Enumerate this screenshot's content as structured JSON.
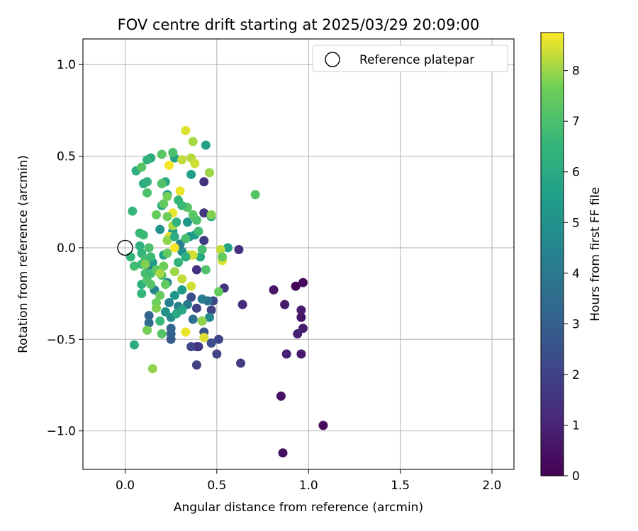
{
  "chart_data": {
    "type": "scatter",
    "title": "FOV centre drift starting at 2025/03/29 20:09:00",
    "xlabel": "Angular distance from reference (arcmin)",
    "ylabel": "Rotation from reference (arcmin)",
    "xlim": [
      -0.23,
      2.12
    ],
    "ylim": [
      -1.21,
      1.14
    ],
    "xticks": [
      0.0,
      0.5,
      1.0,
      1.5,
      2.0
    ],
    "xtick_labels": [
      "0.0",
      "0.5",
      "1.0",
      "1.5",
      "2.0"
    ],
    "yticks": [
      -1.0,
      -0.5,
      0.0,
      0.5,
      1.0
    ],
    "ytick_labels": [
      "−1.0",
      "−0.5",
      "0.0",
      "0.5",
      "1.0"
    ],
    "grid": true,
    "legend": {
      "placement": "top-right",
      "entries": [
        "Reference platepar"
      ]
    },
    "reference_point": {
      "label": "Reference platepar",
      "x": 0.0,
      "y": 0.0
    },
    "colorbar": {
      "label": "Hours from first FF file",
      "min": 0,
      "max": 8.75,
      "ticks": [
        0,
        1,
        2,
        3,
        4,
        5,
        6,
        7,
        8
      ],
      "tick_labels": [
        "0",
        "1",
        "2",
        "3",
        "4",
        "5",
        "6",
        "7",
        "8"
      ],
      "colormap": "viridis"
    },
    "points": [
      {
        "x": 1.08,
        "y": -0.97,
        "t": 0.3
      },
      {
        "x": 0.86,
        "y": -1.12,
        "t": 0.4
      },
      {
        "x": 0.85,
        "y": -0.81,
        "t": 0.5
      },
      {
        "x": 0.93,
        "y": -0.21,
        "t": 0.1
      },
      {
        "x": 0.97,
        "y": -0.19,
        "t": 0.2
      },
      {
        "x": 0.81,
        "y": -0.23,
        "t": 0.6
      },
      {
        "x": 0.87,
        "y": -0.31,
        "t": 0.7
      },
      {
        "x": 0.96,
        "y": -0.34,
        "t": 0.8
      },
      {
        "x": 0.96,
        "y": -0.38,
        "t": 0.6
      },
      {
        "x": 0.97,
        "y": -0.44,
        "t": 0.8
      },
      {
        "x": 0.94,
        "y": -0.47,
        "t": 0.9
      },
      {
        "x": 0.88,
        "y": -0.58,
        "t": 0.9
      },
      {
        "x": 0.96,
        "y": -0.58,
        "t": 0.7
      },
      {
        "x": 0.64,
        "y": -0.31,
        "t": 1.2
      },
      {
        "x": 0.62,
        "y": -0.01,
        "t": 1.4
      },
      {
        "x": 0.63,
        "y": -0.63,
        "t": 1.8
      },
      {
        "x": 0.54,
        "y": -0.22,
        "t": 1.5
      },
      {
        "x": 0.51,
        "y": -0.5,
        "t": 2.1
      },
      {
        "x": 0.5,
        "y": -0.58,
        "t": 2.0
      },
      {
        "x": 0.47,
        "y": -0.52,
        "t": 2.3
      },
      {
        "x": 0.48,
        "y": -0.29,
        "t": 2.2
      },
      {
        "x": 0.47,
        "y": -0.34,
        "t": 2.0
      },
      {
        "x": 0.39,
        "y": -0.64,
        "t": 1.9
      },
      {
        "x": 0.39,
        "y": -0.54,
        "t": 1.8
      },
      {
        "x": 0.36,
        "y": -0.54,
        "t": 2.2
      },
      {
        "x": 0.4,
        "y": -0.54,
        "t": 1.6
      },
      {
        "x": 0.43,
        "y": 0.36,
        "t": 1.5
      },
      {
        "x": 0.43,
        "y": 0.04,
        "t": 1.7
      },
      {
        "x": 0.43,
        "y": 0.19,
        "t": 1.6
      },
      {
        "x": 0.39,
        "y": -0.12,
        "t": 1.4
      },
      {
        "x": 0.39,
        "y": -0.33,
        "t": 1.9
      },
      {
        "x": 0.43,
        "y": -0.46,
        "t": 2.6
      },
      {
        "x": 0.42,
        "y": -0.4,
        "t": 2.5
      },
      {
        "x": 0.36,
        "y": -0.27,
        "t": 2.4
      },
      {
        "x": 0.25,
        "y": -0.5,
        "t": 2.8
      },
      {
        "x": 0.25,
        "y": -0.47,
        "t": 3.0
      },
      {
        "x": 0.25,
        "y": -0.44,
        "t": 3.2
      },
      {
        "x": 0.13,
        "y": -0.37,
        "t": 3.1
      },
      {
        "x": 0.13,
        "y": -0.41,
        "t": 3.4
      },
      {
        "x": 0.37,
        "y": -0.39,
        "t": 3.6
      },
      {
        "x": 0.46,
        "y": -0.38,
        "t": 4.6
      },
      {
        "x": 0.45,
        "y": -0.29,
        "t": 3.8
      },
      {
        "x": 0.42,
        "y": -0.28,
        "t": 4.2
      },
      {
        "x": 0.29,
        "y": -0.32,
        "t": 4.4
      },
      {
        "x": 0.34,
        "y": -0.31,
        "t": 4.0
      },
      {
        "x": 0.25,
        "y": -0.38,
        "t": 4.8
      },
      {
        "x": 0.22,
        "y": -0.35,
        "t": 5.0
      },
      {
        "x": 0.24,
        "y": -0.3,
        "t": 4.3
      },
      {
        "x": 0.27,
        "y": -0.26,
        "t": 5.2
      },
      {
        "x": 0.31,
        "y": -0.23,
        "t": 5.4
      },
      {
        "x": 0.16,
        "y": -0.23,
        "t": 4.5
      },
      {
        "x": 0.13,
        "y": -0.12,
        "t": 4.1
      },
      {
        "x": 0.16,
        "y": -0.12,
        "t": 3.9
      },
      {
        "x": 0.23,
        "y": -0.19,
        "t": 4.7
      },
      {
        "x": 0.15,
        "y": -0.08,
        "t": 5.3
      },
      {
        "x": 0.21,
        "y": -0.04,
        "t": 5.6
      },
      {
        "x": 0.31,
        "y": -0.02,
        "t": 4.9
      },
      {
        "x": 0.35,
        "y": 0.06,
        "t": 5.1
      },
      {
        "x": 0.3,
        "y": 0.02,
        "t": 4.2
      },
      {
        "x": 0.19,
        "y": 0.1,
        "t": 5.0
      },
      {
        "x": 0.34,
        "y": 0.14,
        "t": 5.2
      },
      {
        "x": 0.38,
        "y": 0.07,
        "t": 5.4
      },
      {
        "x": 0.36,
        "y": 0.4,
        "t": 5.5
      },
      {
        "x": 0.44,
        "y": 0.56,
        "t": 5.6
      },
      {
        "x": 0.47,
        "y": 0.17,
        "t": 5.8
      },
      {
        "x": 0.56,
        "y": 0.0,
        "t": 5.7
      },
      {
        "x": 0.41,
        "y": -0.05,
        "t": 5.9
      },
      {
        "x": 0.26,
        "y": 0.09,
        "t": 5.3
      },
      {
        "x": 0.27,
        "y": 0.49,
        "t": 5.7
      },
      {
        "x": 0.22,
        "y": 0.36,
        "t": 5.9
      },
      {
        "x": 0.23,
        "y": 0.29,
        "t": 5.5
      },
      {
        "x": 0.2,
        "y": 0.23,
        "t": 6.0
      },
      {
        "x": 0.1,
        "y": 0.35,
        "t": 6.1
      },
      {
        "x": 0.12,
        "y": 0.36,
        "t": 6.3
      },
      {
        "x": 0.14,
        "y": 0.49,
        "t": 6.0
      },
      {
        "x": 0.12,
        "y": 0.48,
        "t": 6.4
      },
      {
        "x": 0.06,
        "y": 0.42,
        "t": 6.2
      },
      {
        "x": 0.04,
        "y": 0.2,
        "t": 6.5
      },
      {
        "x": 0.08,
        "y": 0.08,
        "t": 6.6
      },
      {
        "x": 0.1,
        "y": 0.07,
        "t": 6.7
      },
      {
        "x": 0.08,
        "y": 0.01,
        "t": 6.3
      },
      {
        "x": 0.03,
        "y": -0.05,
        "t": 6.5
      },
      {
        "x": 0.05,
        "y": -0.1,
        "t": 6.8
      },
      {
        "x": 0.09,
        "y": -0.03,
        "t": 6.4
      },
      {
        "x": 0.09,
        "y": -0.09,
        "t": 6.6
      },
      {
        "x": 0.11,
        "y": -0.06,
        "t": 6.9
      },
      {
        "x": 0.14,
        "y": -0.05,
        "t": 6.7
      },
      {
        "x": 0.13,
        "y": 0.0,
        "t": 7.0
      },
      {
        "x": 0.09,
        "y": -0.2,
        "t": 6.2
      },
      {
        "x": 0.11,
        "y": -0.14,
        "t": 6.9
      },
      {
        "x": 0.09,
        "y": -0.25,
        "t": 6.5
      },
      {
        "x": 0.12,
        "y": -0.18,
        "t": 7.1
      },
      {
        "x": 0.14,
        "y": -0.2,
        "t": 7.2
      },
      {
        "x": 0.14,
        "y": -0.14,
        "t": 6.8
      },
      {
        "x": 0.17,
        "y": -0.12,
        "t": 7.3
      },
      {
        "x": 0.2,
        "y": -0.15,
        "t": 7.0
      },
      {
        "x": 0.22,
        "y": -0.2,
        "t": 7.4
      },
      {
        "x": 0.19,
        "y": -0.26,
        "t": 7.5
      },
      {
        "x": 0.17,
        "y": -0.3,
        "t": 7.6
      },
      {
        "x": 0.17,
        "y": -0.33,
        "t": 7.8
      },
      {
        "x": 0.12,
        "y": -0.45,
        "t": 7.7
      },
      {
        "x": 0.2,
        "y": -0.47,
        "t": 7.2
      },
      {
        "x": 0.15,
        "y": -0.66,
        "t": 7.9
      },
      {
        "x": 0.05,
        "y": -0.53,
        "t": 6.1
      },
      {
        "x": 0.19,
        "y": -0.4,
        "t": 6.6
      },
      {
        "x": 0.28,
        "y": -0.36,
        "t": 6.0
      },
      {
        "x": 0.31,
        "y": -0.34,
        "t": 5.8
      },
      {
        "x": 0.33,
        "y": -0.46,
        "t": 8.6
      },
      {
        "x": 0.43,
        "y": -0.49,
        "t": 8.5
      },
      {
        "x": 0.42,
        "y": -0.4,
        "t": 7.9
      },
      {
        "x": 0.36,
        "y": -0.21,
        "t": 8.4
      },
      {
        "x": 0.31,
        "y": -0.17,
        "t": 8.3
      },
      {
        "x": 0.23,
        "y": -0.03,
        "t": 7.4
      },
      {
        "x": 0.27,
        "y": 0.0,
        "t": 8.7
      },
      {
        "x": 0.24,
        "y": 0.06,
        "t": 8.5
      },
      {
        "x": 0.26,
        "y": 0.12,
        "t": 8.1
      },
      {
        "x": 0.26,
        "y": 0.19,
        "t": 8.6
      },
      {
        "x": 0.35,
        "y": -0.04,
        "t": 8.2
      },
      {
        "x": 0.37,
        "y": -0.04,
        "t": 8.4
      },
      {
        "x": 0.27,
        "y": -0.13,
        "t": 8.0
      },
      {
        "x": 0.24,
        "y": 0.45,
        "t": 8.7
      },
      {
        "x": 0.3,
        "y": 0.31,
        "t": 8.6
      },
      {
        "x": 0.31,
        "y": 0.48,
        "t": 8.3
      },
      {
        "x": 0.33,
        "y": 0.64,
        "t": 8.5
      },
      {
        "x": 0.37,
        "y": 0.58,
        "t": 8.1
      },
      {
        "x": 0.36,
        "y": 0.49,
        "t": 8.2
      },
      {
        "x": 0.38,
        "y": 0.46,
        "t": 8.4
      },
      {
        "x": 0.46,
        "y": 0.41,
        "t": 8.0
      },
      {
        "x": 0.47,
        "y": 0.18,
        "t": 7.8
      },
      {
        "x": 0.52,
        "y": -0.01,
        "t": 8.3
      },
      {
        "x": 0.53,
        "y": -0.07,
        "t": 8.5
      },
      {
        "x": 0.53,
        "y": -0.05,
        "t": 7.4
      },
      {
        "x": 0.51,
        "y": -0.24,
        "t": 7.5
      },
      {
        "x": 0.44,
        "y": -0.12,
        "t": 7.1
      },
      {
        "x": 0.42,
        "y": -0.01,
        "t": 6.9
      },
      {
        "x": 0.4,
        "y": 0.09,
        "t": 6.8
      },
      {
        "x": 0.39,
        "y": 0.15,
        "t": 7.0
      },
      {
        "x": 0.37,
        "y": 0.18,
        "t": 7.3
      },
      {
        "x": 0.34,
        "y": 0.22,
        "t": 7.2
      },
      {
        "x": 0.31,
        "y": 0.23,
        "t": 6.7
      },
      {
        "x": 0.29,
        "y": 0.26,
        "t": 6.5
      },
      {
        "x": 0.28,
        "y": 0.14,
        "t": 6.3
      },
      {
        "x": 0.23,
        "y": 0.17,
        "t": 7.6
      },
      {
        "x": 0.21,
        "y": 0.24,
        "t": 7.4
      },
      {
        "x": 0.23,
        "y": 0.28,
        "t": 7.7
      },
      {
        "x": 0.17,
        "y": 0.18,
        "t": 7.5
      },
      {
        "x": 0.2,
        "y": 0.35,
        "t": 7.1
      },
      {
        "x": 0.2,
        "y": 0.51,
        "t": 7.3
      },
      {
        "x": 0.26,
        "y": 0.52,
        "t": 7.0
      },
      {
        "x": 0.09,
        "y": 0.44,
        "t": 7.2
      },
      {
        "x": 0.12,
        "y": 0.3,
        "t": 7.0
      },
      {
        "x": 0.71,
        "y": 0.29,
        "t": 7.2
      },
      {
        "x": 0.21,
        "y": -0.1,
        "t": 7.6
      },
      {
        "x": 0.23,
        "y": 0.04,
        "t": 7.9
      },
      {
        "x": 0.19,
        "y": -0.14,
        "t": 8.1
      },
      {
        "x": 0.11,
        "y": -0.09,
        "t": 7.8
      },
      {
        "x": 0.29,
        "y": -0.08,
        "t": 6.4
      },
      {
        "x": 0.33,
        "y": -0.05,
        "t": 6.2
      },
      {
        "x": 0.27,
        "y": 0.06,
        "t": 6.1
      },
      {
        "x": 0.33,
        "y": 0.05,
        "t": 6.9
      }
    ]
  }
}
